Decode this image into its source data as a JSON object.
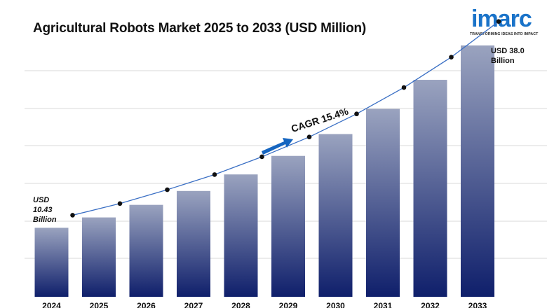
{
  "title": "Agricultural Robots Market 2025 to 2033 (USD Million)",
  "logo": {
    "wordmark": "imarc",
    "tagline": "TRANSFORMING IDEAS INTO IMPACT",
    "color": "#1a73c9"
  },
  "annotations": {
    "start_label": [
      "USD",
      "10.43",
      "Billion"
    ],
    "end_label": [
      "USD 38.0",
      "Billion"
    ],
    "cagr": "CAGR 15.4%"
  },
  "chart_data": {
    "type": "bar",
    "title": "Agricultural Robots Market 2025 to 2033 (USD Million)",
    "categories": [
      "2024",
      "2025",
      "2026",
      "2027",
      "2028",
      "2029",
      "2030",
      "2031",
      "2032",
      "2033"
    ],
    "series": [
      {
        "values": [
          10.43,
          12.0,
          13.9,
          16.0,
          18.5,
          21.3,
          24.6,
          28.4,
          32.8,
          38.0
        ]
      }
    ],
    "trend_line": [
      10.43,
      12.0,
      13.9,
      16.0,
      18.5,
      21.3,
      24.6,
      28.4,
      32.8,
      38.0
    ],
    "ylim": [
      0,
      40
    ],
    "grid": true,
    "colors": {
      "bar_top": "#9aa3bf",
      "bar_bottom": "#0f1f6b",
      "line": "#3a6fc4",
      "arrow": "#1565c0"
    }
  }
}
